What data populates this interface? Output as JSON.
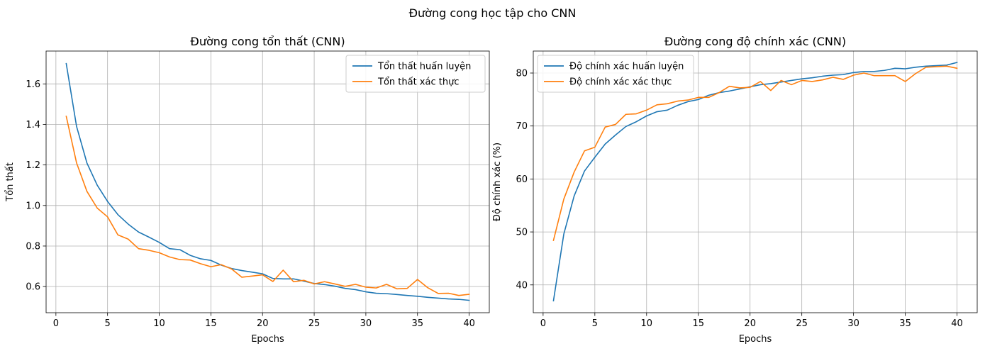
{
  "suptitle": "Đường cong học tập cho CNN",
  "colors": {
    "train": "#1f77b4",
    "val": "#ff7f0e",
    "grid": "#b0b0b0",
    "axis": "#000000"
  },
  "chart_data": [
    {
      "type": "line",
      "title": "Đường cong tổn thất (CNN)",
      "xlabel": "Epochs",
      "ylabel": "Tổn thất",
      "xlim": [
        -0.95,
        41.95
      ],
      "ylim": [
        0.471,
        1.762
      ],
      "xticks": [
        0,
        5,
        10,
        15,
        20,
        25,
        30,
        35,
        40
      ],
      "yticks": [
        0.6,
        0.8,
        1.0,
        1.2,
        1.4,
        1.6
      ],
      "ytick_labels": [
        "0.6",
        "0.8",
        "1.0",
        "1.2",
        "1.4",
        "1.6"
      ],
      "grid": true,
      "legend_position": "top-right",
      "x": [
        1,
        2,
        3,
        4,
        5,
        6,
        7,
        8,
        9,
        10,
        11,
        12,
        13,
        14,
        15,
        16,
        17,
        18,
        19,
        20,
        21,
        22,
        23,
        24,
        25,
        26,
        27,
        28,
        29,
        30,
        31,
        32,
        33,
        34,
        35,
        36,
        37,
        38,
        39,
        40
      ],
      "series": [
        {
          "name": "Tổn thất huấn luyện",
          "color": "#1f77b4",
          "values": [
            1.7,
            1.39,
            1.21,
            1.1,
            1.02,
            0.955,
            0.908,
            0.869,
            0.844,
            0.818,
            0.787,
            0.782,
            0.754,
            0.737,
            0.729,
            0.706,
            0.689,
            0.679,
            0.671,
            0.663,
            0.64,
            0.638,
            0.638,
            0.627,
            0.615,
            0.61,
            0.602,
            0.591,
            0.585,
            0.574,
            0.567,
            0.565,
            0.561,
            0.556,
            0.552,
            0.547,
            0.543,
            0.539,
            0.537,
            0.532
          ]
        },
        {
          "name": "Tổn thất xác thực",
          "color": "#ff7f0e",
          "values": [
            1.44,
            1.21,
            1.07,
            0.987,
            0.944,
            0.855,
            0.834,
            0.787,
            0.779,
            0.767,
            0.746,
            0.733,
            0.731,
            0.713,
            0.698,
            0.708,
            0.687,
            0.646,
            0.652,
            0.658,
            0.625,
            0.681,
            0.624,
            0.631,
            0.613,
            0.624,
            0.613,
            0.601,
            0.611,
            0.597,
            0.593,
            0.611,
            0.589,
            0.591,
            0.635,
            0.594,
            0.566,
            0.567,
            0.556,
            0.562
          ]
        }
      ]
    },
    {
      "type": "line",
      "title": "Đường cong độ chính xác (CNN)",
      "xlabel": "Epochs",
      "ylabel": "Độ chính xác (%)",
      "xlim": [
        -0.95,
        41.95
      ],
      "ylim": [
        34.75,
        84.15
      ],
      "xticks": [
        0,
        5,
        10,
        15,
        20,
        25,
        30,
        35,
        40
      ],
      "yticks": [
        40,
        50,
        60,
        70,
        80
      ],
      "ytick_labels": [
        "40",
        "50",
        "60",
        "70",
        "80"
      ],
      "grid": true,
      "legend_position": "top-left",
      "x": [
        1,
        2,
        3,
        4,
        5,
        6,
        7,
        8,
        9,
        10,
        11,
        12,
        13,
        14,
        15,
        16,
        17,
        18,
        19,
        20,
        21,
        22,
        23,
        24,
        25,
        26,
        27,
        28,
        29,
        30,
        31,
        32,
        33,
        34,
        35,
        36,
        37,
        38,
        39,
        40
      ],
      "series": [
        {
          "name": "Độ chính xác huấn luyện",
          "color": "#1f77b4",
          "values": [
            37.0,
            49.6,
            56.8,
            61.5,
            64.1,
            66.6,
            68.3,
            69.9,
            70.8,
            71.9,
            72.7,
            73.0,
            73.9,
            74.6,
            75.0,
            75.8,
            76.3,
            76.6,
            77.0,
            77.4,
            77.8,
            78.0,
            78.3,
            78.6,
            78.9,
            79.1,
            79.4,
            79.6,
            79.7,
            80.1,
            80.3,
            80.3,
            80.5,
            80.9,
            80.8,
            81.1,
            81.3,
            81.4,
            81.5,
            82.0
          ]
        },
        {
          "name": "Độ chính xác xác thực",
          "color": "#ff7f0e",
          "values": [
            48.4,
            56.2,
            61.3,
            65.3,
            66.0,
            69.8,
            70.3,
            72.2,
            72.3,
            73.0,
            74.0,
            74.2,
            74.7,
            74.9,
            75.4,
            75.4,
            76.3,
            77.5,
            77.2,
            77.3,
            78.4,
            76.7,
            78.6,
            77.8,
            78.6,
            78.4,
            78.7,
            79.2,
            78.8,
            79.6,
            80.0,
            79.5,
            79.5,
            79.5,
            78.4,
            79.9,
            81.1,
            81.2,
            81.3,
            80.9
          ]
        }
      ]
    }
  ]
}
